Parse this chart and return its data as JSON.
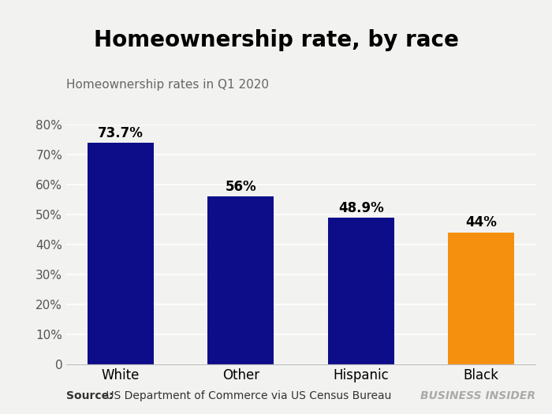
{
  "title": "Homeownership rate, by race",
  "subtitle": "Homeownership rates in Q1 2020",
  "categories": [
    "White",
    "Other",
    "Hispanic",
    "Black"
  ],
  "values": [
    73.7,
    56.0,
    48.9,
    44.0
  ],
  "labels": [
    "73.7%",
    "56%",
    "48.9%",
    "44%"
  ],
  "bar_colors": [
    "#0d0d8a",
    "#0d0d8a",
    "#0d0d8a",
    "#f5900e"
  ],
  "ylim": [
    0,
    80
  ],
  "yticks": [
    0,
    10,
    20,
    30,
    40,
    50,
    60,
    70,
    80
  ],
  "ytick_labels": [
    "0",
    "10%",
    "20%",
    "30%",
    "40%",
    "50%",
    "60%",
    "70%",
    "80%"
  ],
  "source_bold": "Source:",
  "source_rest": " US Department of Commerce via US Census Bureau",
  "watermark": "BUSINESS INSIDER",
  "background_color": "#f2f2f0",
  "title_fontsize": 20,
  "subtitle_fontsize": 11,
  "label_fontsize": 12,
  "tick_fontsize": 11,
  "source_fontsize": 10,
  "watermark_fontsize": 10,
  "bar_width": 0.55
}
